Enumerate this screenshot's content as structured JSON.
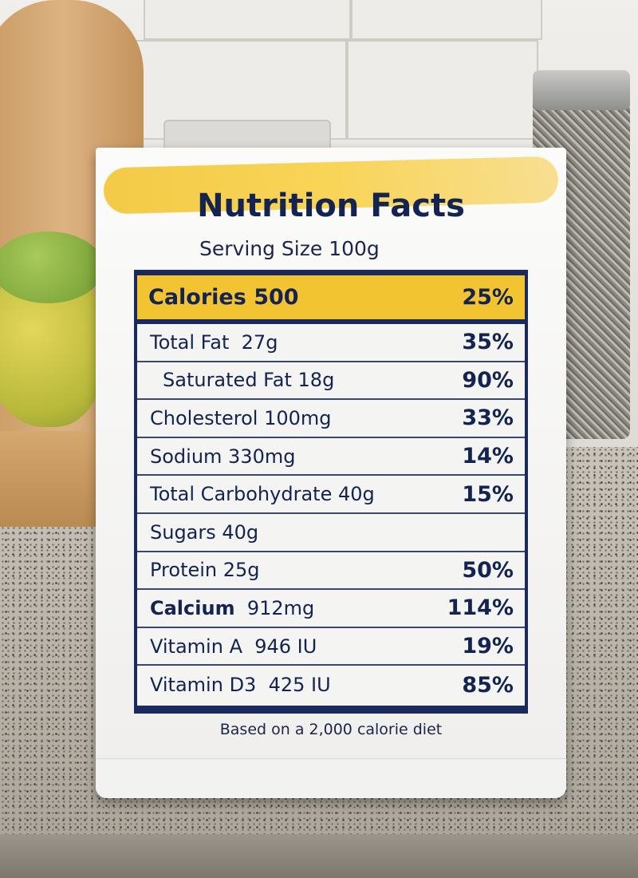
{
  "label": {
    "title": "Nutrition Facts",
    "serving_size": "Serving Size 100g",
    "calories": {
      "name": "Calories 500",
      "pct": "25%"
    },
    "rows": [
      {
        "name": "Total Fat  27g",
        "pct": "35%"
      },
      {
        "name": "Saturated Fat 18g",
        "pct": "90%"
      },
      {
        "name": "Cholesterol 100mg",
        "pct": "33%"
      },
      {
        "name": "Sodium 330mg",
        "pct": "14%"
      },
      {
        "name": "Total Carbohydrate 40g",
        "pct": "15%"
      },
      {
        "name": "Sugars 40g",
        "pct": ""
      },
      {
        "name": "Protein 25g",
        "pct": "50%"
      },
      {
        "name": "Calcium",
        "amount": "912mg",
        "pct": "114%"
      },
      {
        "name": "Vitamin A  946 IU",
        "pct": "19%"
      },
      {
        "name": "Vitamin D3  425 IU",
        "pct": "85%"
      }
    ],
    "footnote": "Based on a 2,000 calorie diet"
  },
  "colors": {
    "navy": "#1b2a5c",
    "highlight": "#f3c431"
  }
}
